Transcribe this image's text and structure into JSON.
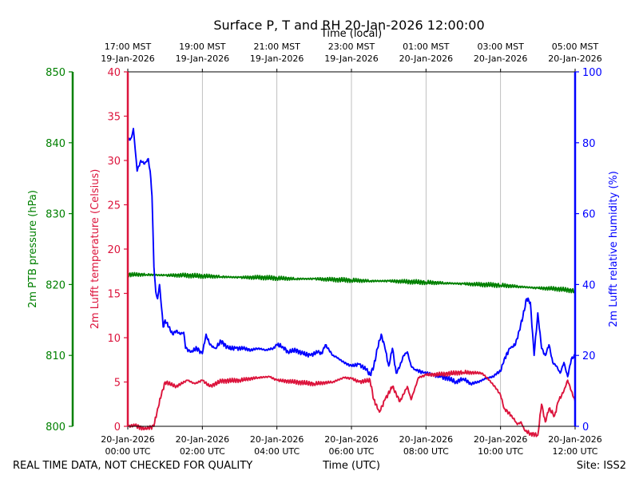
{
  "chart_data": {
    "type": "line",
    "title": "Surface P, T and RH 20-Jan-2026 12:00:00",
    "xlabel": "Time (UTC)",
    "top_xlabel": "Time (local)",
    "footer_left": "REAL TIME DATA, NOT CHECKED FOR QUALITY",
    "footer_right": "Site: ISS2",
    "x_range_hours": [
      0,
      12
    ],
    "bottom_ticks": [
      {
        "hour": 0,
        "date": "20-Jan-2026",
        "time": "00:00 UTC"
      },
      {
        "hour": 2,
        "date": "20-Jan-2026",
        "time": "02:00 UTC"
      },
      {
        "hour": 4,
        "date": "20-Jan-2026",
        "time": "04:00 UTC"
      },
      {
        "hour": 6,
        "date": "20-Jan-2026",
        "time": "06:00 UTC"
      },
      {
        "hour": 8,
        "date": "20-Jan-2026",
        "time": "08:00 UTC"
      },
      {
        "hour": 10,
        "date": "20-Jan-2026",
        "time": "10:00 UTC"
      },
      {
        "hour": 12,
        "date": "20-Jan-2026",
        "time": "12:00 UTC"
      }
    ],
    "top_ticks": [
      {
        "hour": 0,
        "time": "17:00 MST",
        "date": "19-Jan-2026"
      },
      {
        "hour": 2,
        "time": "19:00 MST",
        "date": "19-Jan-2026"
      },
      {
        "hour": 4,
        "time": "21:00 MST",
        "date": "19-Jan-2026"
      },
      {
        "hour": 6,
        "time": "23:00 MST",
        "date": "19-Jan-2026"
      },
      {
        "hour": 8,
        "time": "01:00 MST",
        "date": "20-Jan-2026"
      },
      {
        "hour": 10,
        "time": "03:00 MST",
        "date": "20-Jan-2026"
      },
      {
        "hour": 12,
        "time": "05:00 MST",
        "date": "20-Jan-2026"
      }
    ],
    "axes": {
      "pressure": {
        "label": "2m PTB pressure (hPa)",
        "color": "#008000",
        "ylim": [
          800,
          850
        ],
        "ticks": [
          800,
          810,
          820,
          830,
          840,
          850
        ]
      },
      "temperature": {
        "label": "2m Lufft temperature (Celsius)",
        "color": "#dc143c",
        "ylim": [
          0,
          40
        ],
        "ticks": [
          0,
          5,
          10,
          15,
          20,
          25,
          30,
          35,
          40
        ]
      },
      "humidity": {
        "label": "2m Lufft relative humidity (%)",
        "color": "#0000ff",
        "ylim": [
          0,
          100
        ],
        "ticks": [
          0,
          20,
          40,
          60,
          80,
          100
        ]
      }
    },
    "series": [
      {
        "name": "2m PTB pressure",
        "axis": "pressure",
        "color": "#008000",
        "points": [
          [
            0,
            821.4
          ],
          [
            0.5,
            821.4
          ],
          [
            1,
            821.3
          ],
          [
            1.5,
            821.3
          ],
          [
            2,
            821.2
          ],
          [
            2.5,
            821.1
          ],
          [
            3,
            821.0
          ],
          [
            3.5,
            821.0
          ],
          [
            4,
            820.9
          ],
          [
            4.5,
            820.8
          ],
          [
            5,
            820.8
          ],
          [
            5.5,
            820.7
          ],
          [
            6,
            820.6
          ],
          [
            6.5,
            820.5
          ],
          [
            7,
            820.5
          ],
          [
            7.5,
            820.4
          ],
          [
            8,
            820.3
          ],
          [
            8.5,
            820.2
          ],
          [
            9,
            820.1
          ],
          [
            9.5,
            820.0
          ],
          [
            10,
            819.9
          ],
          [
            10.5,
            819.7
          ],
          [
            11,
            819.5
          ],
          [
            11.5,
            819.4
          ],
          [
            12,
            819.1
          ]
        ]
      },
      {
        "name": "2m Lufft temperature",
        "axis": "temperature",
        "color": "#dc143c",
        "points": [
          [
            0,
            0
          ],
          [
            0.2,
            0.1
          ],
          [
            0.45,
            -0.3
          ],
          [
            0.7,
            0
          ],
          [
            0.8,
            2
          ],
          [
            0.9,
            3.5
          ],
          [
            1.0,
            5
          ],
          [
            1.3,
            4.5
          ],
          [
            1.6,
            5.2
          ],
          [
            1.8,
            4.8
          ],
          [
            2.0,
            5.2
          ],
          [
            2.2,
            4.5
          ],
          [
            2.5,
            5.1
          ],
          [
            3.0,
            5.2
          ],
          [
            3.5,
            5.5
          ],
          [
            3.8,
            5.6
          ],
          [
            4.0,
            5.2
          ],
          [
            4.5,
            5.0
          ],
          [
            5.0,
            4.8
          ],
          [
            5.5,
            5.0
          ],
          [
            5.8,
            5.5
          ],
          [
            6.0,
            5.4
          ],
          [
            6.2,
            5.0
          ],
          [
            6.5,
            5.2
          ],
          [
            6.6,
            3
          ],
          [
            6.75,
            1.6
          ],
          [
            6.9,
            3
          ],
          [
            7.1,
            4.5
          ],
          [
            7.3,
            2.8
          ],
          [
            7.5,
            4.5
          ],
          [
            7.6,
            3.0
          ],
          [
            7.8,
            5.5
          ],
          [
            8.0,
            5.8
          ],
          [
            8.5,
            5.9
          ],
          [
            9.0,
            6.1
          ],
          [
            9.5,
            6.0
          ],
          [
            9.7,
            5.2
          ],
          [
            9.9,
            4.2
          ],
          [
            10.0,
            3.5
          ],
          [
            10.1,
            2.0
          ],
          [
            10.3,
            1.2
          ],
          [
            10.45,
            0.2
          ],
          [
            10.55,
            0.5
          ],
          [
            10.65,
            -0.5
          ],
          [
            10.8,
            -0.8
          ],
          [
            11.0,
            -1.0
          ],
          [
            11.1,
            2.5
          ],
          [
            11.2,
            0.5
          ],
          [
            11.3,
            2.0
          ],
          [
            11.45,
            1.2
          ],
          [
            11.55,
            2.8
          ],
          [
            11.7,
            4.0
          ],
          [
            11.8,
            5.2
          ],
          [
            11.9,
            4.0
          ],
          [
            12.0,
            2.8
          ]
        ]
      },
      {
        "name": "2m Lufft relative humidity",
        "axis": "humidity",
        "color": "#0000ff",
        "points": [
          [
            0,
            80.5
          ],
          [
            0.1,
            81.5
          ],
          [
            0.15,
            84
          ],
          [
            0.2,
            78
          ],
          [
            0.25,
            72
          ],
          [
            0.35,
            75
          ],
          [
            0.45,
            74
          ],
          [
            0.55,
            75.5
          ],
          [
            0.6,
            72
          ],
          [
            0.65,
            65
          ],
          [
            0.7,
            45
          ],
          [
            0.75,
            38
          ],
          [
            0.8,
            36
          ],
          [
            0.85,
            40
          ],
          [
            0.9,
            34
          ],
          [
            0.95,
            28
          ],
          [
            1.0,
            30
          ],
          [
            1.1,
            28
          ],
          [
            1.2,
            26
          ],
          [
            1.3,
            27
          ],
          [
            1.4,
            26
          ],
          [
            1.5,
            26.5
          ],
          [
            1.55,
            22
          ],
          [
            1.7,
            21
          ],
          [
            1.85,
            22
          ],
          [
            2.0,
            20.5
          ],
          [
            2.1,
            26
          ],
          [
            2.2,
            23
          ],
          [
            2.35,
            22
          ],
          [
            2.5,
            24
          ],
          [
            2.7,
            22
          ],
          [
            2.9,
            22
          ],
          [
            3.1,
            22
          ],
          [
            3.3,
            21.5
          ],
          [
            3.5,
            22
          ],
          [
            3.7,
            21.5
          ],
          [
            3.9,
            22
          ],
          [
            4.0,
            23
          ],
          [
            4.15,
            22.5
          ],
          [
            4.3,
            21
          ],
          [
            4.5,
            21.5
          ],
          [
            4.7,
            20.5
          ],
          [
            4.9,
            20
          ],
          [
            5.1,
            21
          ],
          [
            5.2,
            20.5
          ],
          [
            5.3,
            23
          ],
          [
            5.4,
            21.5
          ],
          [
            5.5,
            20
          ],
          [
            5.6,
            19.5
          ],
          [
            5.8,
            18
          ],
          [
            6.0,
            17
          ],
          [
            6.2,
            17.5
          ],
          [
            6.4,
            16
          ],
          [
            6.5,
            14.5
          ],
          [
            6.6,
            17
          ],
          [
            6.7,
            22
          ],
          [
            6.8,
            26
          ],
          [
            6.9,
            22
          ],
          [
            7.0,
            17
          ],
          [
            7.1,
            22
          ],
          [
            7.2,
            15
          ],
          [
            7.3,
            17
          ],
          [
            7.4,
            20
          ],
          [
            7.5,
            21
          ],
          [
            7.6,
            17
          ],
          [
            7.7,
            16
          ],
          [
            7.85,
            15.5
          ],
          [
            8.0,
            15
          ],
          [
            8.2,
            14.5
          ],
          [
            8.4,
            14
          ],
          [
            8.6,
            13.5
          ],
          [
            8.8,
            12.5
          ],
          [
            9.0,
            13.5
          ],
          [
            9.2,
            12
          ],
          [
            9.4,
            12.5
          ],
          [
            9.6,
            13.5
          ],
          [
            9.8,
            14
          ],
          [
            9.9,
            15
          ],
          [
            10.0,
            15.5
          ],
          [
            10.1,
            19
          ],
          [
            10.25,
            22
          ],
          [
            10.4,
            23
          ],
          [
            10.5,
            27
          ],
          [
            10.6,
            31
          ],
          [
            10.7,
            36
          ],
          [
            10.8,
            35
          ],
          [
            10.9,
            20
          ],
          [
            11.0,
            32
          ],
          [
            11.1,
            22
          ],
          [
            11.2,
            20
          ],
          [
            11.3,
            23
          ],
          [
            11.4,
            18
          ],
          [
            11.5,
            17
          ],
          [
            11.6,
            15
          ],
          [
            11.7,
            18
          ],
          [
            11.8,
            14
          ],
          [
            11.9,
            19
          ],
          [
            12.0,
            20
          ]
        ]
      }
    ]
  }
}
